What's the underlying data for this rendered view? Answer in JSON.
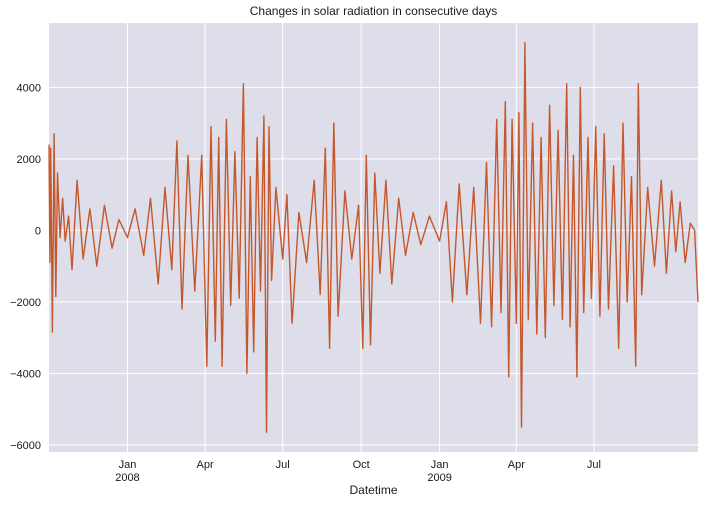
{
  "chart_data": {
    "type": "line",
    "title": "Changes in solar radiation in consecutive days",
    "xlabel": "Datetime",
    "ylabel": "",
    "x_range": [
      "2007-10-01",
      "2009-10-31"
    ],
    "ylim": [
      -6200,
      5800
    ],
    "grid": true,
    "legend": "none",
    "colors": {
      "line": "#c4572b",
      "background": "#dedeea",
      "grid": "#ffffff"
    },
    "yticks": [
      {
        "value": -6000,
        "label": "−6000"
      },
      {
        "value": -4000,
        "label": "−4000"
      },
      {
        "value": -2000,
        "label": "−2000"
      },
      {
        "value": 0,
        "label": "0"
      },
      {
        "value": 2000,
        "label": "2000"
      },
      {
        "value": 4000,
        "label": "4000"
      }
    ],
    "xticks": [
      {
        "date": "2008-01-01",
        "label": "Jan",
        "sublabel": "2008"
      },
      {
        "date": "2008-04-01",
        "label": "Apr",
        "sublabel": ""
      },
      {
        "date": "2008-07-01",
        "label": "Jul",
        "sublabel": ""
      },
      {
        "date": "2008-10-01",
        "label": "Oct",
        "sublabel": ""
      },
      {
        "date": "2009-01-01",
        "label": "Jan",
        "sublabel": "2009"
      },
      {
        "date": "2009-04-01",
        "label": "Apr",
        "sublabel": ""
      },
      {
        "date": "2009-07-01",
        "label": "Jul",
        "sublabel": ""
      }
    ],
    "series": [
      {
        "points": [
          [
            "2007-10-01",
            2400
          ],
          [
            "2007-10-02",
            -900
          ],
          [
            "2007-10-03",
            2300
          ],
          [
            "2007-10-05",
            -2850
          ],
          [
            "2007-10-07",
            2700
          ],
          [
            "2007-10-09",
            -1850
          ],
          [
            "2007-10-11",
            1600
          ],
          [
            "2007-10-14",
            -200
          ],
          [
            "2007-10-17",
            900
          ],
          [
            "2007-10-20",
            -300
          ],
          [
            "2007-10-24",
            400
          ],
          [
            "2007-10-28",
            -1100
          ],
          [
            "2007-11-03",
            1400
          ],
          [
            "2007-11-10",
            -800
          ],
          [
            "2007-11-18",
            600
          ],
          [
            "2007-11-26",
            -1000
          ],
          [
            "2007-12-05",
            700
          ],
          [
            "2007-12-14",
            -500
          ],
          [
            "2007-12-22",
            300
          ],
          [
            "2008-01-01",
            -200
          ],
          [
            "2008-01-10",
            600
          ],
          [
            "2008-01-20",
            -700
          ],
          [
            "2008-01-28",
            900
          ],
          [
            "2008-02-06",
            -1500
          ],
          [
            "2008-02-14",
            1200
          ],
          [
            "2008-02-22",
            -1100
          ],
          [
            "2008-02-28",
            2500
          ],
          [
            "2008-03-05",
            -2200
          ],
          [
            "2008-03-12",
            2100
          ],
          [
            "2008-03-20",
            -1700
          ],
          [
            "2008-03-28",
            2100
          ],
          [
            "2008-04-03",
            -3800
          ],
          [
            "2008-04-08",
            2900
          ],
          [
            "2008-04-13",
            -3100
          ],
          [
            "2008-04-17",
            2600
          ],
          [
            "2008-04-21",
            -3800
          ],
          [
            "2008-04-26",
            3100
          ],
          [
            "2008-05-01",
            -2100
          ],
          [
            "2008-05-06",
            2200
          ],
          [
            "2008-05-11",
            -1900
          ],
          [
            "2008-05-16",
            4100
          ],
          [
            "2008-05-20",
            -4000
          ],
          [
            "2008-05-24",
            1500
          ],
          [
            "2008-05-28",
            -3400
          ],
          [
            "2008-06-01",
            2600
          ],
          [
            "2008-06-05",
            -1700
          ],
          [
            "2008-06-09",
            3200
          ],
          [
            "2008-06-12",
            -5650
          ],
          [
            "2008-06-15",
            2900
          ],
          [
            "2008-06-18",
            -1400
          ],
          [
            "2008-06-23",
            1200
          ],
          [
            "2008-07-01",
            -800
          ],
          [
            "2008-07-06",
            1000
          ],
          [
            "2008-07-12",
            -2600
          ],
          [
            "2008-07-20",
            500
          ],
          [
            "2008-07-29",
            -900
          ],
          [
            "2008-08-07",
            1400
          ],
          [
            "2008-08-14",
            -1800
          ],
          [
            "2008-08-20",
            2300
          ],
          [
            "2008-08-25",
            -3300
          ],
          [
            "2008-08-30",
            3000
          ],
          [
            "2008-09-04",
            -2400
          ],
          [
            "2008-09-12",
            1100
          ],
          [
            "2008-09-20",
            -800
          ],
          [
            "2008-09-28",
            700
          ],
          [
            "2008-10-03",
            -3300
          ],
          [
            "2008-10-07",
            2100
          ],
          [
            "2008-10-12",
            -3200
          ],
          [
            "2008-10-17",
            1600
          ],
          [
            "2008-10-23",
            -1200
          ],
          [
            "2008-10-30",
            1400
          ],
          [
            "2008-11-06",
            -1500
          ],
          [
            "2008-11-14",
            900
          ],
          [
            "2008-11-22",
            -700
          ],
          [
            "2008-12-01",
            500
          ],
          [
            "2008-12-10",
            -400
          ],
          [
            "2008-12-20",
            400
          ],
          [
            "2009-01-01",
            -300
          ],
          [
            "2009-01-09",
            800
          ],
          [
            "2009-01-16",
            -2000
          ],
          [
            "2009-01-24",
            1300
          ],
          [
            "2009-02-02",
            -1800
          ],
          [
            "2009-02-10",
            1200
          ],
          [
            "2009-02-18",
            -2600
          ],
          [
            "2009-02-25",
            1900
          ],
          [
            "2009-03-03",
            -2700
          ],
          [
            "2009-03-09",
            3100
          ],
          [
            "2009-03-14",
            -2300
          ],
          [
            "2009-03-19",
            3600
          ],
          [
            "2009-03-23",
            -4100
          ],
          [
            "2009-03-27",
            3100
          ],
          [
            "2009-04-01",
            -2600
          ],
          [
            "2009-04-04",
            3300
          ],
          [
            "2009-04-07",
            -5500
          ],
          [
            "2009-04-11",
            5250
          ],
          [
            "2009-04-15",
            -2500
          ],
          [
            "2009-04-20",
            3000
          ],
          [
            "2009-04-25",
            -2900
          ],
          [
            "2009-04-30",
            2600
          ],
          [
            "2009-05-05",
            -3000
          ],
          [
            "2009-05-10",
            3500
          ],
          [
            "2009-05-15",
            -2100
          ],
          [
            "2009-05-20",
            2800
          ],
          [
            "2009-05-25",
            -2500
          ],
          [
            "2009-05-30",
            4100
          ],
          [
            "2009-06-03",
            -2700
          ],
          [
            "2009-06-07",
            2100
          ],
          [
            "2009-06-11",
            -4100
          ],
          [
            "2009-06-15",
            4000
          ],
          [
            "2009-06-19",
            -2300
          ],
          [
            "2009-06-24",
            2600
          ],
          [
            "2009-06-28",
            -1900
          ],
          [
            "2009-07-03",
            2900
          ],
          [
            "2009-07-08",
            -2400
          ],
          [
            "2009-07-13",
            2700
          ],
          [
            "2009-07-18",
            -2200
          ],
          [
            "2009-07-24",
            1800
          ],
          [
            "2009-07-30",
            -3300
          ],
          [
            "2009-08-04",
            3000
          ],
          [
            "2009-08-09",
            -2000
          ],
          [
            "2009-08-14",
            1500
          ],
          [
            "2009-08-19",
            -3800
          ],
          [
            "2009-08-22",
            4100
          ],
          [
            "2009-08-26",
            -1800
          ],
          [
            "2009-09-02",
            1200
          ],
          [
            "2009-09-10",
            -1000
          ],
          [
            "2009-09-18",
            1400
          ],
          [
            "2009-09-24",
            -1200
          ],
          [
            "2009-09-30",
            1100
          ],
          [
            "2009-10-05",
            -600
          ],
          [
            "2009-10-10",
            800
          ],
          [
            "2009-10-16",
            -900
          ],
          [
            "2009-10-22",
            200
          ],
          [
            "2009-10-27",
            0
          ],
          [
            "2009-10-31",
            -2000
          ]
        ]
      }
    ]
  }
}
